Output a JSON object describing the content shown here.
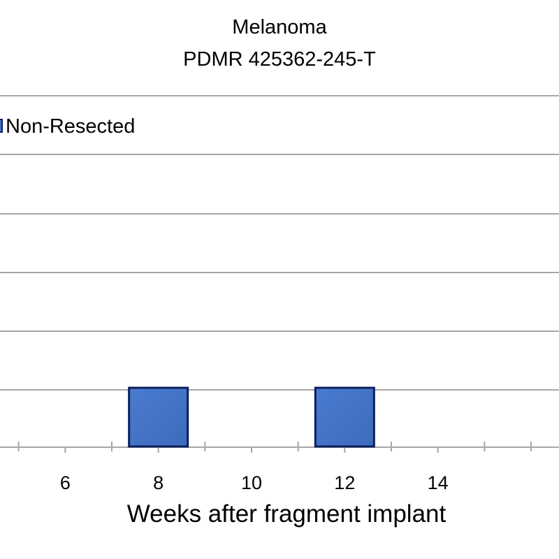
{
  "chart_data": {
    "type": "scatter",
    "title": "Melanoma",
    "subtitle": "PDMR 425362-245-T",
    "xlabel": "Weeks after fragment implant",
    "ylabel": "",
    "xlim": [
      4.6,
      16.6
    ],
    "x_ticks": [
      6,
      8,
      10,
      12,
      14
    ],
    "grid": true,
    "legend": {
      "position": "top-left",
      "entries": [
        "Non-Resected"
      ]
    },
    "series": [
      {
        "name": "Non-Resected",
        "marker": "square",
        "color": "#4472c4",
        "edge_color": "#0b1f5c",
        "points": [
          {
            "x": 8,
            "y": 0
          },
          {
            "x": 12,
            "y": 0
          }
        ]
      }
    ]
  }
}
